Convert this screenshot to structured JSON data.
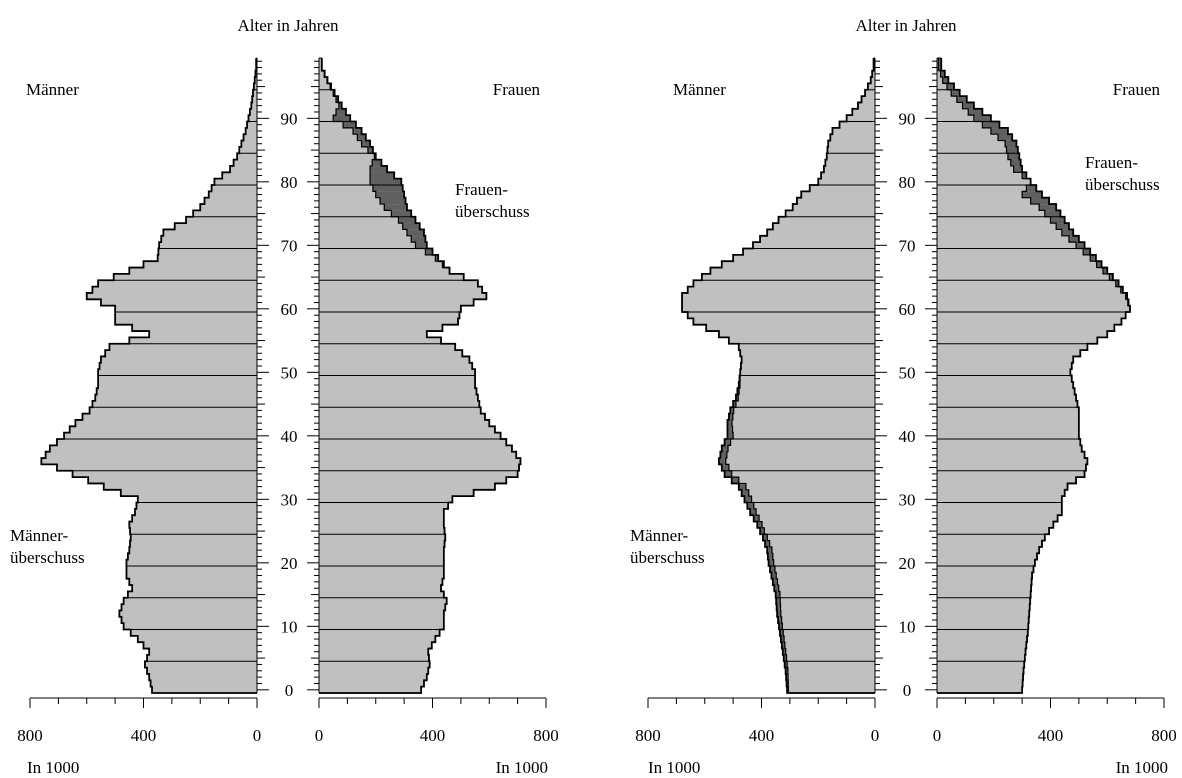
{
  "colors": {
    "base": "#c0c0c0",
    "surplus": "#606060",
    "outline": "#000000",
    "background": "#ffffff"
  },
  "chart_data": [
    {
      "type": "population-pyramid",
      "title": "Alter in Jahren",
      "left_label": "Männer",
      "right_label": "Frauen",
      "surplus_labels": {
        "men": "Männer-\nüberschuss",
        "women": "Frauen-\nüberschuss"
      },
      "unit_label": "In 1000",
      "age_ticks": [
        0,
        10,
        20,
        30,
        40,
        50,
        60,
        70,
        80,
        90
      ],
      "age_max": 99,
      "x_max": 800,
      "x_ticks": [
        800,
        400,
        0
      ],
      "men_keypoints": [
        [
          0,
          370
        ],
        [
          2,
          380
        ],
        [
          4,
          395
        ],
        [
          6,
          380
        ],
        [
          8,
          420
        ],
        [
          10,
          470
        ],
        [
          12,
          485
        ],
        [
          14,
          470
        ],
        [
          16,
          440
        ],
        [
          18,
          460
        ],
        [
          20,
          460
        ],
        [
          22,
          450
        ],
        [
          24,
          445
        ],
        [
          26,
          450
        ],
        [
          28,
          430
        ],
        [
          30,
          420
        ],
        [
          32,
          540
        ],
        [
          34,
          650
        ],
        [
          36,
          760
        ],
        [
          38,
          730
        ],
        [
          40,
          680
        ],
        [
          42,
          640
        ],
        [
          44,
          590
        ],
        [
          46,
          570
        ],
        [
          48,
          560
        ],
        [
          50,
          560
        ],
        [
          52,
          550
        ],
        [
          54,
          520
        ],
        [
          56,
          380
        ],
        [
          58,
          500
        ],
        [
          60,
          500
        ],
        [
          62,
          600
        ],
        [
          64,
          560
        ],
        [
          66,
          450
        ],
        [
          68,
          350
        ],
        [
          70,
          345
        ],
        [
          72,
          330
        ],
        [
          74,
          250
        ],
        [
          76,
          200
        ],
        [
          78,
          170
        ],
        [
          80,
          150
        ],
        [
          82,
          95
        ],
        [
          84,
          70
        ],
        [
          86,
          55
        ],
        [
          88,
          40
        ],
        [
          90,
          30
        ],
        [
          92,
          20
        ],
        [
          94,
          14
        ],
        [
          96,
          8
        ],
        [
          98,
          3
        ]
      ],
      "women_keypoints": [
        [
          0,
          360
        ],
        [
          2,
          380
        ],
        [
          4,
          390
        ],
        [
          6,
          385
        ],
        [
          8,
          410
        ],
        [
          10,
          440
        ],
        [
          12,
          440
        ],
        [
          14,
          450
        ],
        [
          16,
          430
        ],
        [
          18,
          440
        ],
        [
          20,
          440
        ],
        [
          22,
          440
        ],
        [
          24,
          445
        ],
        [
          26,
          440
        ],
        [
          28,
          440
        ],
        [
          30,
          470
        ],
        [
          32,
          620
        ],
        [
          34,
          700
        ],
        [
          36,
          710
        ],
        [
          38,
          680
        ],
        [
          40,
          640
        ],
        [
          42,
          600
        ],
        [
          44,
          570
        ],
        [
          46,
          560
        ],
        [
          48,
          550
        ],
        [
          50,
          550
        ],
        [
          52,
          530
        ],
        [
          54,
          480
        ],
        [
          56,
          380
        ],
        [
          58,
          490
        ],
        [
          60,
          500
        ],
        [
          62,
          590
        ],
        [
          64,
          560
        ],
        [
          66,
          460
        ],
        [
          68,
          420
        ],
        [
          70,
          380
        ],
        [
          72,
          370
        ],
        [
          74,
          340
        ],
        [
          76,
          310
        ],
        [
          78,
          300
        ],
        [
          80,
          290
        ],
        [
          82,
          240
        ],
        [
          84,
          200
        ],
        [
          86,
          180
        ],
        [
          88,
          150
        ],
        [
          90,
          110
        ],
        [
          92,
          80
        ],
        [
          94,
          55
        ],
        [
          96,
          30
        ],
        [
          98,
          10
        ]
      ],
      "excess_women_keypoints": [
        [
          66,
          0
        ],
        [
          68,
          10
        ],
        [
          70,
          40
        ],
        [
          72,
          60
        ],
        [
          74,
          60
        ],
        [
          76,
          80
        ],
        [
          78,
          100
        ],
        [
          80,
          110
        ],
        [
          82,
          60
        ],
        [
          84,
          5
        ],
        [
          86,
          30
        ],
        [
          88,
          30
        ],
        [
          90,
          60
        ],
        [
          92,
          10
        ],
        [
          94,
          5
        ],
        [
          96,
          2
        ],
        [
          98,
          1
        ]
      ]
    },
    {
      "type": "population-pyramid",
      "title": "Alter in Jahren",
      "left_label": "Männer",
      "right_label": "Frauen",
      "surplus_labels": {
        "men": "Männer-\nüberschuss",
        "women": "Frauen-\nüberschuss"
      },
      "unit_label": "In 1000",
      "age_ticks": [
        0,
        10,
        20,
        30,
        40,
        50,
        60,
        70,
        80,
        90
      ],
      "age_max": 99,
      "x_max": 800,
      "x_ticks": [
        800,
        400,
        0
      ],
      "men_keypoints": [
        [
          0,
          310
        ],
        [
          3,
          315
        ],
        [
          6,
          325
        ],
        [
          9,
          335
        ],
        [
          12,
          345
        ],
        [
          15,
          350
        ],
        [
          18,
          365
        ],
        [
          20,
          375
        ],
        [
          22,
          380
        ],
        [
          24,
          395
        ],
        [
          26,
          415
        ],
        [
          28,
          440
        ],
        [
          30,
          460
        ],
        [
          32,
          480
        ],
        [
          34,
          530
        ],
        [
          36,
          550
        ],
        [
          38,
          540
        ],
        [
          40,
          520
        ],
        [
          42,
          520
        ],
        [
          44,
          510
        ],
        [
          46,
          490
        ],
        [
          48,
          480
        ],
        [
          50,
          475
        ],
        [
          52,
          470
        ],
        [
          54,
          480
        ],
        [
          56,
          550
        ],
        [
          58,
          640
        ],
        [
          60,
          680
        ],
        [
          62,
          680
        ],
        [
          64,
          640
        ],
        [
          66,
          580
        ],
        [
          68,
          500
        ],
        [
          70,
          430
        ],
        [
          72,
          380
        ],
        [
          74,
          340
        ],
        [
          76,
          290
        ],
        [
          78,
          260
        ],
        [
          80,
          200
        ],
        [
          82,
          180
        ],
        [
          84,
          170
        ],
        [
          86,
          165
        ],
        [
          88,
          150
        ],
        [
          90,
          100
        ],
        [
          92,
          60
        ],
        [
          94,
          35
        ],
        [
          96,
          15
        ],
        [
          98,
          5
        ]
      ],
      "women_keypoints": [
        [
          0,
          300
        ],
        [
          3,
          305
        ],
        [
          6,
          312
        ],
        [
          9,
          320
        ],
        [
          12,
          325
        ],
        [
          15,
          330
        ],
        [
          18,
          335
        ],
        [
          20,
          345
        ],
        [
          22,
          360
        ],
        [
          24,
          380
        ],
        [
          26,
          410
        ],
        [
          28,
          440
        ],
        [
          30,
          440
        ],
        [
          32,
          460
        ],
        [
          34,
          520
        ],
        [
          36,
          530
        ],
        [
          38,
          510
        ],
        [
          40,
          500
        ],
        [
          42,
          500
        ],
        [
          44,
          500
        ],
        [
          46,
          490
        ],
        [
          48,
          480
        ],
        [
          50,
          470
        ],
        [
          52,
          480
        ],
        [
          54,
          530
        ],
        [
          56,
          600
        ],
        [
          58,
          650
        ],
        [
          60,
          680
        ],
        [
          62,
          670
        ],
        [
          64,
          640
        ],
        [
          66,
          600
        ],
        [
          68,
          560
        ],
        [
          70,
          520
        ],
        [
          72,
          480
        ],
        [
          74,
          450
        ],
        [
          76,
          420
        ],
        [
          78,
          370
        ],
        [
          80,
          330
        ],
        [
          82,
          300
        ],
        [
          84,
          290
        ],
        [
          86,
          280
        ],
        [
          88,
          250
        ],
        [
          90,
          190
        ],
        [
          92,
          130
        ],
        [
          94,
          80
        ],
        [
          96,
          40
        ],
        [
          98,
          15
        ]
      ],
      "excess_women_keypoints": [
        [
          60,
          0
        ],
        [
          62,
          5
        ],
        [
          64,
          10
        ],
        [
          66,
          15
        ],
        [
          68,
          20
        ],
        [
          70,
          30
        ],
        [
          72,
          40
        ],
        [
          74,
          50
        ],
        [
          76,
          60
        ],
        [
          78,
          70
        ],
        [
          80,
          0
        ],
        [
          82,
          30
        ],
        [
          84,
          40
        ],
        [
          86,
          40
        ],
        [
          88,
          60
        ],
        [
          90,
          60
        ],
        [
          92,
          40
        ],
        [
          94,
          30
        ],
        [
          96,
          20
        ],
        [
          98,
          10
        ]
      ],
      "excess_men_keypoints": [
        [
          0,
          5
        ],
        [
          5,
          10
        ],
        [
          10,
          12
        ],
        [
          15,
          15
        ],
        [
          20,
          18
        ],
        [
          25,
          15
        ],
        [
          30,
          25
        ],
        [
          35,
          25
        ],
        [
          40,
          20
        ],
        [
          45,
          10
        ],
        [
          50,
          0
        ]
      ]
    }
  ]
}
